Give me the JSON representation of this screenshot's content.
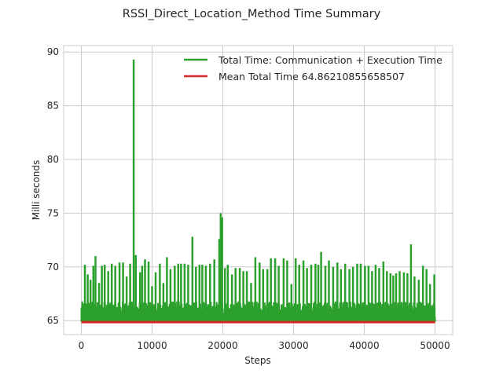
{
  "chart_data": {
    "type": "line",
    "title": "RSSI_Direct_Location_Method Time Summary",
    "xlabel": "Steps",
    "ylabel": "Milli seconds",
    "xlim": [
      -2500,
      52500
    ],
    "ylim": [
      63.7,
      90.6
    ],
    "xticks": [
      0,
      10000,
      20000,
      30000,
      40000,
      50000
    ],
    "yticks": [
      65,
      70,
      75,
      80,
      85,
      90
    ],
    "grid": true,
    "legend": "top-right",
    "baseline": 64.9,
    "noise_band": [
      65.1,
      66.8
    ],
    "spikes": [
      [
        500,
        70.2
      ],
      [
        900,
        69.3
      ],
      [
        1300,
        68.8
      ],
      [
        1700,
        70.1
      ],
      [
        2000,
        71.0
      ],
      [
        2500,
        68.5
      ],
      [
        2900,
        70.1
      ],
      [
        3300,
        70.2
      ],
      [
        3800,
        69.6
      ],
      [
        4300,
        70.3
      ],
      [
        4800,
        70.1
      ],
      [
        5400,
        70.4
      ],
      [
        5900,
        70.4
      ],
      [
        6400,
        69.1
      ],
      [
        6900,
        70.3
      ],
      [
        7400,
        89.3
      ],
      [
        7700,
        71.1
      ],
      [
        8300,
        69.5
      ],
      [
        8600,
        70.1
      ],
      [
        9000,
        70.7
      ],
      [
        9500,
        70.5
      ],
      [
        10000,
        68.2
      ],
      [
        10500,
        69.5
      ],
      [
        11100,
        70.3
      ],
      [
        11600,
        68.5
      ],
      [
        12100,
        70.9
      ],
      [
        12600,
        69.8
      ],
      [
        13200,
        70.1
      ],
      [
        13700,
        70.3
      ],
      [
        14100,
        70.3
      ],
      [
        14600,
        70.3
      ],
      [
        15100,
        70.2
      ],
      [
        15700,
        72.8
      ],
      [
        16200,
        70.0
      ],
      [
        16700,
        70.2
      ],
      [
        17100,
        70.2
      ],
      [
        17600,
        70.1
      ],
      [
        18200,
        70.3
      ],
      [
        18800,
        70.7
      ],
      [
        19500,
        72.6
      ],
      [
        19700,
        75.0
      ],
      [
        19900,
        74.6
      ],
      [
        20300,
        69.9
      ],
      [
        20700,
        70.2
      ],
      [
        21300,
        69.3
      ],
      [
        21800,
        69.9
      ],
      [
        22400,
        69.9
      ],
      [
        22900,
        69.6
      ],
      [
        23400,
        69.6
      ],
      [
        24000,
        68.5
      ],
      [
        24600,
        70.9
      ],
      [
        25200,
        70.4
      ],
      [
        25700,
        69.8
      ],
      [
        26300,
        69.8
      ],
      [
        26800,
        70.8
      ],
      [
        27400,
        70.8
      ],
      [
        27900,
        70.1
      ],
      [
        28600,
        70.8
      ],
      [
        29100,
        70.6
      ],
      [
        29700,
        68.4
      ],
      [
        30300,
        70.8
      ],
      [
        30800,
        70.2
      ],
      [
        31400,
        70.6
      ],
      [
        31900,
        69.9
      ],
      [
        32500,
        70.2
      ],
      [
        33100,
        70.3
      ],
      [
        33500,
        70.2
      ],
      [
        33900,
        71.4
      ],
      [
        34500,
        70.1
      ],
      [
        35000,
        70.6
      ],
      [
        35600,
        70.0
      ],
      [
        36200,
        70.4
      ],
      [
        36700,
        69.8
      ],
      [
        37300,
        70.3
      ],
      [
        37900,
        69.8
      ],
      [
        38400,
        70.0
      ],
      [
        39000,
        70.3
      ],
      [
        39500,
        70.3
      ],
      [
        40100,
        70.1
      ],
      [
        40600,
        70.1
      ],
      [
        41100,
        69.6
      ],
      [
        41600,
        70.2
      ],
      [
        42100,
        69.9
      ],
      [
        42700,
        70.5
      ],
      [
        43200,
        69.6
      ],
      [
        43700,
        69.4
      ],
      [
        44100,
        69.2
      ],
      [
        44500,
        69.4
      ],
      [
        45000,
        69.6
      ],
      [
        45600,
        69.5
      ],
      [
        46100,
        69.4
      ],
      [
        46600,
        72.1
      ],
      [
        47100,
        69.1
      ],
      [
        47700,
        68.8
      ],
      [
        48300,
        70.1
      ],
      [
        48800,
        69.8
      ],
      [
        49300,
        68.4
      ],
      [
        49900,
        69.3
      ]
    ],
    "series": [
      {
        "name": "Total Time: Communication + Execution Time",
        "color": "#2ca02c"
      },
      {
        "name": "Mean Total Time 64.86210855658507",
        "color": "#d62728",
        "value": 64.86210855658507,
        "x_range": [
          0,
          50000
        ]
      }
    ]
  }
}
